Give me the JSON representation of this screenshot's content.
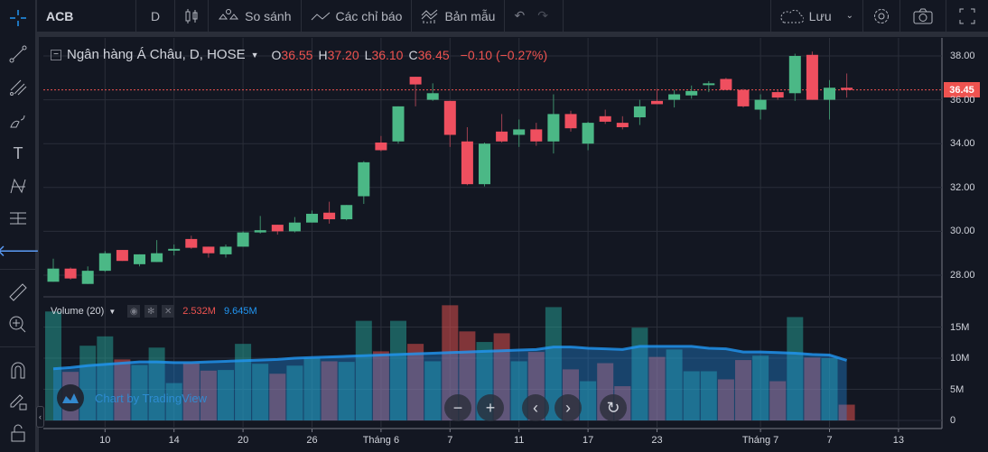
{
  "toolbar": {
    "symbol": "ACB",
    "interval": "D",
    "compare": "So sánh",
    "indicators": "Các chỉ báo",
    "templates": "Bản mẫu",
    "save": "Lưu"
  },
  "legend": {
    "title": "Ngân hàng Á Châu, D, HOSE",
    "o_label": "O",
    "o": "36.55",
    "h_label": "H",
    "h": "37.20",
    "l_label": "L",
    "l": "36.10",
    "c_label": "C",
    "c": "36.45",
    "change": "−0.10 (−0.27%)"
  },
  "volume_legend": {
    "title": "Volume (20)",
    "volume": "2.532M",
    "ma": "9.645M"
  },
  "watermark": "Chart by TradingView",
  "current_price_label": "36.45",
  "colors": {
    "up": "#26a69a",
    "down": "#ef5350",
    "ma": "#2196f3",
    "bg": "#131722"
  },
  "chart_data": {
    "type": "candlestick",
    "price_axis": {
      "ticks": [
        "38.00",
        "36.00",
        "34.00",
        "32.00",
        "30.00",
        "28.00"
      ],
      "values": [
        38,
        36,
        34,
        32,
        30,
        28
      ]
    },
    "volume_axis": {
      "ticks": [
        "15M",
        "10M",
        "5M",
        "0"
      ],
      "values": [
        15,
        10,
        5,
        0
      ]
    },
    "time_labels": [
      {
        "label": "10",
        "index": 3
      },
      {
        "label": "14",
        "index": 7
      },
      {
        "label": "20",
        "index": 11
      },
      {
        "label": "26",
        "index": 15
      },
      {
        "label": "Tháng 6",
        "index": 19
      },
      {
        "label": "7",
        "index": 23
      },
      {
        "label": "11",
        "index": 27
      },
      {
        "label": "17",
        "index": 31
      },
      {
        "label": "23",
        "index": 35
      },
      {
        "label": "Tháng 7",
        "index": 41
      },
      {
        "label": "7",
        "index": 45
      },
      {
        "label": "13",
        "index": 49
      }
    ],
    "current_price": 36.45,
    "ohlc": [
      [
        27.7,
        28.75,
        27.7,
        28.3
      ],
      [
        28.3,
        28.35,
        27.8,
        27.85
      ],
      [
        27.6,
        28.4,
        27.6,
        28.2
      ],
      [
        28.2,
        29.1,
        28.15,
        29.0
      ],
      [
        29.15,
        29.15,
        28.65,
        28.65
      ],
      [
        28.5,
        28.95,
        28.4,
        28.95
      ],
      [
        28.6,
        29.6,
        28.6,
        29.0
      ],
      [
        29.15,
        29.4,
        28.9,
        29.2
      ],
      [
        29.65,
        29.8,
        29.2,
        29.25
      ],
      [
        29.3,
        29.3,
        28.8,
        29.0
      ],
      [
        28.95,
        29.4,
        28.8,
        29.3
      ],
      [
        29.3,
        30.0,
        29.3,
        29.95
      ],
      [
        29.95,
        30.7,
        29.9,
        30.05
      ],
      [
        30.3,
        30.3,
        29.85,
        30.0
      ],
      [
        30.0,
        30.65,
        29.95,
        30.4
      ],
      [
        30.4,
        30.95,
        30.4,
        30.8
      ],
      [
        30.85,
        31.35,
        30.35,
        30.55
      ],
      [
        30.55,
        31.2,
        30.5,
        31.2
      ],
      [
        31.6,
        33.2,
        31.25,
        33.15
      ],
      [
        34.05,
        34.35,
        33.65,
        33.7
      ],
      [
        34.1,
        35.7,
        34.0,
        35.7
      ],
      [
        37.05,
        37.05,
        35.7,
        36.7
      ],
      [
        36.0,
        36.75,
        35.95,
        36.3
      ],
      [
        35.95,
        35.95,
        33.85,
        34.4
      ],
      [
        34.1,
        34.75,
        32.1,
        32.15
      ],
      [
        32.15,
        34.05,
        32.05,
        34.0
      ],
      [
        34.55,
        35.35,
        34.05,
        34.1
      ],
      [
        34.4,
        35.1,
        33.85,
        34.65
      ],
      [
        34.65,
        34.95,
        33.9,
        34.1
      ],
      [
        34.1,
        36.25,
        33.55,
        35.35
      ],
      [
        35.35,
        35.5,
        34.55,
        34.7
      ],
      [
        34.0,
        35.0,
        33.7,
        34.95
      ],
      [
        35.25,
        35.55,
        34.9,
        35.0
      ],
      [
        34.95,
        35.25,
        34.65,
        34.75
      ],
      [
        35.2,
        36.0,
        34.85,
        35.7
      ],
      [
        35.95,
        36.5,
        35.8,
        35.8
      ],
      [
        36.0,
        36.45,
        35.65,
        36.25
      ],
      [
        36.2,
        36.65,
        36.05,
        36.4
      ],
      [
        36.7,
        36.85,
        36.35,
        36.75
      ],
      [
        36.95,
        37.0,
        36.45,
        36.45
      ],
      [
        36.45,
        36.5,
        35.65,
        35.7
      ],
      [
        35.55,
        36.25,
        35.1,
        36.0
      ],
      [
        36.35,
        36.45,
        36.0,
        36.1
      ],
      [
        36.3,
        38.1,
        35.95,
        38.0
      ],
      [
        38.05,
        38.2,
        36.0,
        36.0
      ],
      [
        36.0,
        36.9,
        35.1,
        36.55
      ],
      [
        36.55,
        37.2,
        36.1,
        36.45
      ]
    ],
    "volume_millions": [
      17.5,
      7.8,
      12.0,
      13.5,
      9.8,
      8.9,
      11.7,
      6.0,
      9.2,
      8.0,
      8.1,
      12.3,
      9.1,
      7.5,
      8.8,
      10.0,
      9.5,
      9.4,
      16.0,
      11.1,
      16.0,
      12.3,
      9.5,
      18.5,
      14.3,
      12.6,
      14.0,
      9.5,
      11.0,
      18.2,
      8.2,
      6.3,
      9.2,
      5.5,
      14.9,
      10.2,
      11.4,
      7.9,
      7.9,
      6.6,
      9.7,
      10.4,
      6.3,
      16.6,
      10.1,
      10.0,
      2.532
    ],
    "volume_ma_millions": [
      8.3,
      8.5,
      8.8,
      9.0,
      9.2,
      9.4,
      9.4,
      9.3,
      9.3,
      9.4,
      9.5,
      9.6,
      9.7,
      9.8,
      10.0,
      10.1,
      10.2,
      10.3,
      10.4,
      10.5,
      10.6,
      10.7,
      10.8,
      10.9,
      11.0,
      11.1,
      11.2,
      11.3,
      11.4,
      11.8,
      11.8,
      11.6,
      11.5,
      11.4,
      11.9,
      11.9,
      11.9,
      11.9,
      11.6,
      11.5,
      11.0,
      11.0,
      10.9,
      10.8,
      10.6,
      10.5,
      9.645
    ]
  }
}
